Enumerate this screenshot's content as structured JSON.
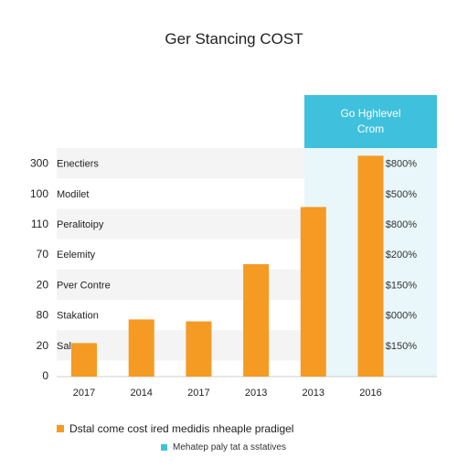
{
  "chart_data": {
    "type": "bar",
    "title": "Ger Stancing COST",
    "categories": [
      "2017",
      "2014",
      "2017",
      "2013",
      "2013",
      "2016"
    ],
    "values": [
      17,
      29,
      28,
      57,
      86,
      112
    ],
    "ylim": [
      0,
      140
    ],
    "grid": false,
    "row_labels": [
      {
        "num": "300",
        "label": "Enectiers",
        "value": "$800%"
      },
      {
        "num": "100",
        "label": "Modilet",
        "value": "$500%"
      },
      {
        "num": "110",
        "label": "Peralitoipy",
        "value": "$800%"
      },
      {
        "num": "70",
        "label": "Eelemity",
        "value": "$200%"
      },
      {
        "num": "20",
        "label": "Pver Contre",
        "value": "$150%"
      },
      {
        "num": "80",
        "label": "Stakation",
        "value": "$000%"
      },
      {
        "num": "20",
        "label": "Salgs",
        "value": "$150%"
      }
    ],
    "axis_zero_label": "0",
    "highlight_header": [
      "Go Hghlevel",
      "Crom"
    ],
    "legend": [
      {
        "label": "Dstal come cost ired medidis nheaple pradigel",
        "color": "#f59a23"
      },
      {
        "label": "Mehatep paly tat a sstatives",
        "color": "#3fc1dd"
      }
    ],
    "colors": {
      "bar": "#f59a23",
      "highlight_bar": "#f59a23",
      "header": "#3fc1dd",
      "panel": "#e9f6fa",
      "stripe": "#f4f4f4"
    }
  }
}
